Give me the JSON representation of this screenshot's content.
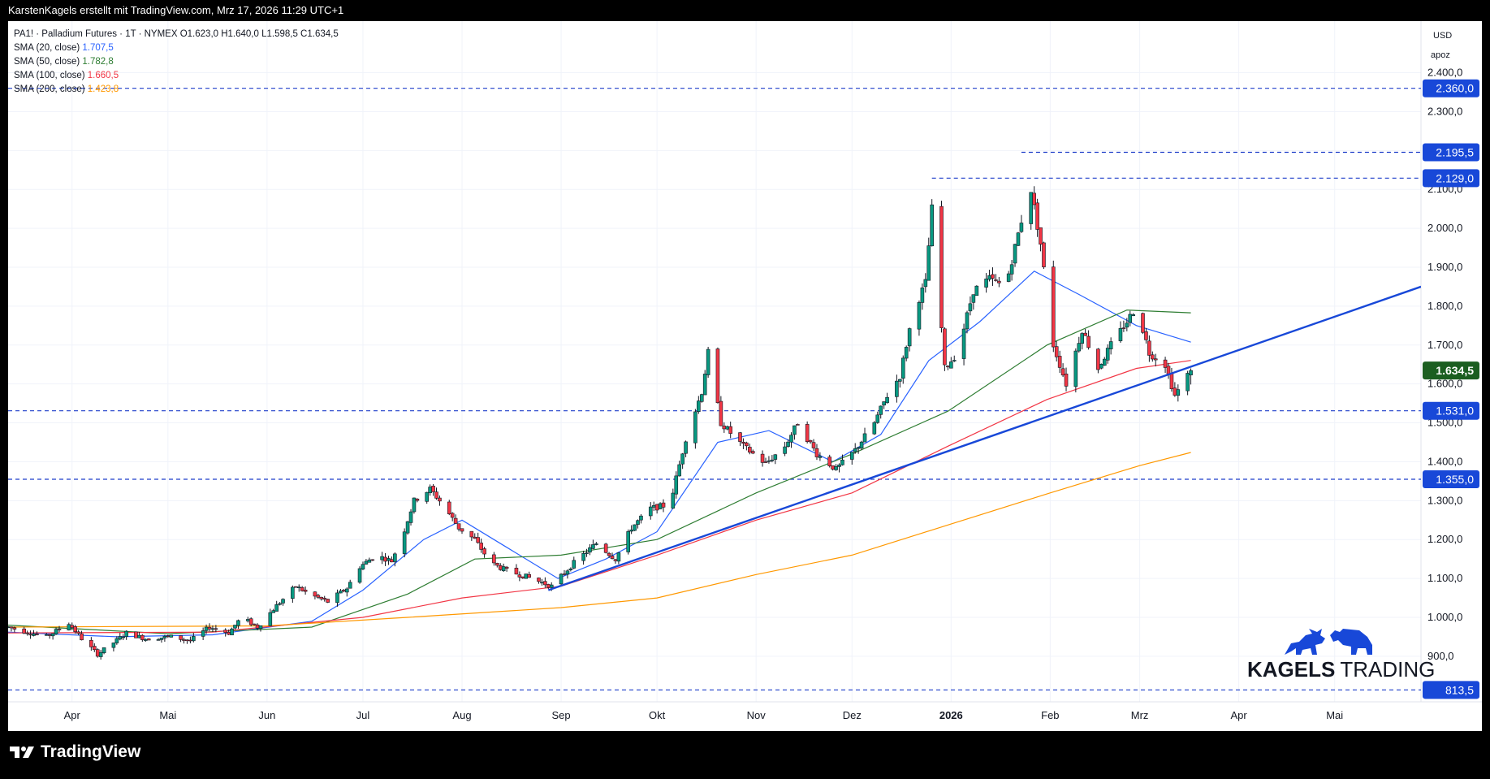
{
  "header": {
    "author_line": "KarstenKagels erstellt mit TradingView.com, Mrz 17, 2026 11:29 UTC+1"
  },
  "legend": {
    "symbol_line": "PA1! · Palladium Futures · 1T · NYMEX  O1.623,0  H1.640,0  L1.598,5  C1.634,5",
    "sma": [
      {
        "label": "SMA (20, close)",
        "value": "1.707,5",
        "color": "#2962ff"
      },
      {
        "label": "SMA (50, close)",
        "value": "1.782,8",
        "color": "#2e7d32"
      },
      {
        "label": "SMA (100, close)",
        "value": "1.660,5",
        "color": "#f23645"
      },
      {
        "label": "SMA (200, close)",
        "value": "1.423,8",
        "color": "#ff9800"
      }
    ]
  },
  "axis": {
    "currency": "USD",
    "scale_mode": "apoz"
  },
  "watermark": {
    "text_bold": "KAGELS",
    "text_regular": "TRADING"
  },
  "footer": {
    "brand": "TradingView"
  },
  "colors": {
    "up": "#089981",
    "down": "#f23645",
    "trendline": "#1848d8",
    "hline": "#1f3ec9",
    "last_price": "#1b5e20",
    "label_bg": "#1848d8"
  },
  "chart_data": {
    "type": "candlestick",
    "symbol": "PA1!",
    "title": "Palladium Futures",
    "interval": "1T",
    "exchange": "NYMEX",
    "ohlc_last": {
      "open": 1623.0,
      "high": 1640.0,
      "low": 1598.5,
      "close": 1634.5
    },
    "x_range": [
      "2025-03-12",
      "2026-05-28"
    ],
    "ylim": [
      780,
      2520
    ],
    "y_ticks": [
      900,
      1000,
      1100,
      1200,
      1300,
      1400,
      1500,
      1600,
      1700,
      1800,
      1900,
      2000,
      2100,
      2200,
      2300,
      2400
    ],
    "x_ticks": [
      {
        "label": "Apr",
        "date": "2025-04-01"
      },
      {
        "label": "Mai",
        "date": "2025-05-01"
      },
      {
        "label": "Jun",
        "date": "2025-06-01"
      },
      {
        "label": "Jul",
        "date": "2025-07-01"
      },
      {
        "label": "Aug",
        "date": "2025-08-01"
      },
      {
        "label": "Sep",
        "date": "2025-09-01"
      },
      {
        "label": "Okt",
        "date": "2025-10-01"
      },
      {
        "label": "Nov",
        "date": "2025-11-01"
      },
      {
        "label": "Dez",
        "date": "2025-12-01"
      },
      {
        "label": "2026",
        "date": "2026-01-01",
        "bold": true
      },
      {
        "label": "Feb",
        "date": "2026-02-01"
      },
      {
        "label": "Mrz",
        "date": "2026-03-01"
      },
      {
        "label": "Apr",
        "date": "2026-04-01"
      },
      {
        "label": "Mai",
        "date": "2026-05-01"
      }
    ],
    "horizontal_levels": [
      {
        "value": 2360.0,
        "label": "2.360,0",
        "start": "2025-03-12"
      },
      {
        "value": 2195.5,
        "label": "2.195,5",
        "start": "2026-01-23"
      },
      {
        "value": 2129.0,
        "label": "2.129,0",
        "start": "2025-12-26"
      },
      {
        "value": 1531.0,
        "label": "1.531,0",
        "start": "2025-03-12"
      },
      {
        "value": 1355.0,
        "label": "1.355,0",
        "start": "2025-03-12"
      },
      {
        "value": 813.5,
        "label": "813,5",
        "start": "2025-03-12"
      }
    ],
    "last_price": {
      "value": 1634.5,
      "label": "1.634,5"
    },
    "trendline": {
      "from": {
        "date": "2025-08-28",
        "price": 1070
      },
      "to": {
        "date": "2026-05-28",
        "price": 1850
      }
    },
    "price_path": [
      [
        "2025-03-12",
        975
      ],
      [
        "2025-03-18",
        962
      ],
      [
        "2025-03-24",
        950
      ],
      [
        "2025-03-31",
        985
      ],
      [
        "2025-04-04",
        945
      ],
      [
        "2025-04-09",
        905
      ],
      [
        "2025-04-14",
        935
      ],
      [
        "2025-04-18",
        960
      ],
      [
        "2025-04-24",
        945
      ],
      [
        "2025-05-02",
        950
      ],
      [
        "2025-05-08",
        940
      ],
      [
        "2025-05-14",
        975
      ],
      [
        "2025-05-20",
        960
      ],
      [
        "2025-05-24",
        1000
      ],
      [
        "2025-05-29",
        975
      ],
      [
        "2025-06-04",
        1030
      ],
      [
        "2025-06-10",
        1080
      ],
      [
        "2025-06-14",
        1060
      ],
      [
        "2025-06-20",
        1040
      ],
      [
        "2025-06-26",
        1075
      ],
      [
        "2025-06-30",
        1130
      ],
      [
        "2025-07-05",
        1160
      ],
      [
        "2025-07-10",
        1145
      ],
      [
        "2025-07-14",
        1225
      ],
      [
        "2025-07-17",
        1300
      ],
      [
        "2025-07-22",
        1330
      ],
      [
        "2025-07-26",
        1290
      ],
      [
        "2025-07-31",
        1230
      ],
      [
        "2025-08-05",
        1200
      ],
      [
        "2025-08-10",
        1140
      ],
      [
        "2025-08-15",
        1120
      ],
      [
        "2025-08-21",
        1105
      ],
      [
        "2025-08-29",
        1080
      ],
      [
        "2025-09-05",
        1140
      ],
      [
        "2025-09-12",
        1190
      ],
      [
        "2025-09-18",
        1150
      ],
      [
        "2025-09-23",
        1230
      ],
      [
        "2025-09-29",
        1280
      ],
      [
        "2025-10-05",
        1290
      ],
      [
        "2025-10-10",
        1460
      ],
      [
        "2025-10-15",
        1580
      ],
      [
        "2025-10-17",
        1680
      ],
      [
        "2025-10-21",
        1500
      ],
      [
        "2025-10-28",
        1440
      ],
      [
        "2025-11-04",
        1395
      ],
      [
        "2025-11-10",
        1440
      ],
      [
        "2025-11-14",
        1500
      ],
      [
        "2025-11-20",
        1420
      ],
      [
        "2025-11-26",
        1380
      ],
      [
        "2025-12-02",
        1430
      ],
      [
        "2025-12-08",
        1500
      ],
      [
        "2025-12-12",
        1570
      ],
      [
        "2025-12-16",
        1620
      ],
      [
        "2025-12-20",
        1780
      ],
      [
        "2025-12-24",
        1860
      ],
      [
        "2025-12-26",
        2050
      ],
      [
        "2025-12-30",
        1640
      ],
      [
        "2026-01-03",
        1680
      ],
      [
        "2026-01-08",
        1840
      ],
      [
        "2026-01-13",
        1870
      ],
      [
        "2026-01-18",
        1850
      ],
      [
        "2026-01-23",
        2020
      ],
      [
        "2026-01-26",
        2100
      ],
      [
        "2026-01-29",
        1960
      ],
      [
        "2026-02-02",
        1700
      ],
      [
        "2026-02-06",
        1600
      ],
      [
        "2026-02-11",
        1740
      ],
      [
        "2026-02-16",
        1640
      ],
      [
        "2026-02-20",
        1700
      ],
      [
        "2026-02-25",
        1760
      ],
      [
        "2026-02-28",
        1800
      ],
      [
        "2026-03-04",
        1680
      ],
      [
        "2026-03-09",
        1650
      ],
      [
        "2026-03-12",
        1570
      ],
      [
        "2026-03-17",
        1634.5
      ]
    ],
    "sma_paths": {
      "sma20": [
        [
          "2025-03-12",
          962
        ],
        [
          "2025-04-15",
          950
        ],
        [
          "2025-05-15",
          955
        ],
        [
          "2025-06-15",
          990
        ],
        [
          "2025-07-01",
          1070
        ],
        [
          "2025-07-20",
          1200
        ],
        [
          "2025-08-01",
          1250
        ],
        [
          "2025-08-15",
          1180
        ],
        [
          "2025-08-31",
          1100
        ],
        [
          "2025-09-15",
          1150
        ],
        [
          "2025-10-01",
          1220
        ],
        [
          "2025-10-20",
          1450
        ],
        [
          "2025-11-05",
          1480
        ],
        [
          "2025-11-25",
          1400
        ],
        [
          "2025-12-10",
          1470
        ],
        [
          "2025-12-25",
          1660
        ],
        [
          "2026-01-10",
          1760
        ],
        [
          "2026-01-27",
          1890
        ],
        [
          "2026-02-10",
          1830
        ],
        [
          "2026-02-28",
          1750
        ],
        [
          "2026-03-17",
          1707.5
        ]
      ],
      "sma50": [
        [
          "2025-03-12",
          980
        ],
        [
          "2025-05-01",
          958
        ],
        [
          "2025-06-15",
          975
        ],
        [
          "2025-07-15",
          1060
        ],
        [
          "2025-08-05",
          1150
        ],
        [
          "2025-09-01",
          1160
        ],
        [
          "2025-10-01",
          1200
        ],
        [
          "2025-11-01",
          1320
        ],
        [
          "2025-12-01",
          1420
        ],
        [
          "2025-12-31",
          1530
        ],
        [
          "2026-01-31",
          1700
        ],
        [
          "2026-02-25",
          1790
        ],
        [
          "2026-03-17",
          1782.8
        ]
      ],
      "sma100": [
        [
          "2025-03-12",
          960
        ],
        [
          "2025-05-15",
          962
        ],
        [
          "2025-07-01",
          1000
        ],
        [
          "2025-08-01",
          1050
        ],
        [
          "2025-09-01",
          1080
        ],
        [
          "2025-10-01",
          1160
        ],
        [
          "2025-11-01",
          1250
        ],
        [
          "2025-12-01",
          1320
        ],
        [
          "2025-12-31",
          1440
        ],
        [
          "2026-01-31",
          1560
        ],
        [
          "2026-02-28",
          1640
        ],
        [
          "2026-03-17",
          1660.5
        ]
      ],
      "sma200": [
        [
          "2025-03-12",
          975
        ],
        [
          "2025-06-01",
          978
        ],
        [
          "2025-07-15",
          1000
        ],
        [
          "2025-09-01",
          1025
        ],
        [
          "2025-10-01",
          1050
        ],
        [
          "2025-11-01",
          1110
        ],
        [
          "2025-12-01",
          1160
        ],
        [
          "2026-01-01",
          1240
        ],
        [
          "2026-02-01",
          1320
        ],
        [
          "2026-03-01",
          1390
        ],
        [
          "2026-03-17",
          1423.8
        ]
      ]
    }
  }
}
